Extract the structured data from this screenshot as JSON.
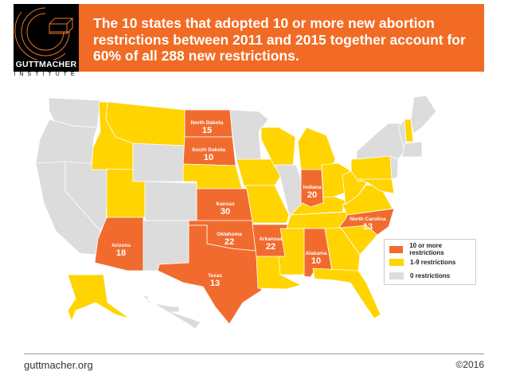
{
  "header": {
    "logo_name": "GUTTMACHER",
    "logo_sub": "INSTITUTE",
    "headline": "The 10 states that adopted 10 or more new abortion restrictions between 2011 and 2015 together account for 60% of all 288 new restrictions."
  },
  "colors": {
    "ten_or_more": "#f26b2e",
    "one_to_nine": "#ffd400",
    "zero": "#dcdcdc",
    "banner": "#f26b24"
  },
  "legend": [
    {
      "key": "ten_or_more",
      "label": "10 or more restrictions"
    },
    {
      "key": "one_to_nine",
      "label": "1-9 restrictions"
    },
    {
      "key": "zero",
      "label": "0 restrictions"
    }
  ],
  "states": {
    "WA": {
      "cat": "zero"
    },
    "OR": {
      "cat": "zero"
    },
    "CA": {
      "cat": "zero"
    },
    "NV": {
      "cat": "zero"
    },
    "ID": {
      "cat": "one_to_nine"
    },
    "MT": {
      "cat": "one_to_nine"
    },
    "WY": {
      "cat": "zero"
    },
    "UT": {
      "cat": "one_to_nine"
    },
    "AZ": {
      "cat": "ten_or_more",
      "name": "Arizona",
      "value": "18"
    },
    "CO": {
      "cat": "zero"
    },
    "NM": {
      "cat": "zero"
    },
    "ND": {
      "cat": "ten_or_more",
      "name": "North Dakota",
      "value": "15"
    },
    "SD": {
      "cat": "ten_or_more",
      "name": "South Dakota",
      "value": "10"
    },
    "NE": {
      "cat": "one_to_nine"
    },
    "KS": {
      "cat": "ten_or_more",
      "name": "Kansas",
      "value": "30"
    },
    "OK": {
      "cat": "ten_or_more",
      "name": "Oklahoma",
      "value": "22"
    },
    "TX": {
      "cat": "ten_or_more",
      "name": "Texas",
      "value": "13"
    },
    "MN": {
      "cat": "zero"
    },
    "IA": {
      "cat": "one_to_nine"
    },
    "MO": {
      "cat": "one_to_nine"
    },
    "AR": {
      "cat": "ten_or_more",
      "name": "Arkansas",
      "value": "22"
    },
    "LA": {
      "cat": "one_to_nine"
    },
    "WI": {
      "cat": "one_to_nine"
    },
    "IL": {
      "cat": "zero"
    },
    "MI": {
      "cat": "one_to_nine"
    },
    "IN": {
      "cat": "ten_or_more",
      "name": "Indiana",
      "value": "20"
    },
    "OH": {
      "cat": "one_to_nine"
    },
    "KY": {
      "cat": "one_to_nine"
    },
    "TN": {
      "cat": "one_to_nine"
    },
    "MS": {
      "cat": "one_to_nine"
    },
    "AL": {
      "cat": "ten_or_more",
      "name": "Alabama",
      "value": "10"
    },
    "GA": {
      "cat": "one_to_nine"
    },
    "FL": {
      "cat": "one_to_nine"
    },
    "SC": {
      "cat": "one_to_nine"
    },
    "NC": {
      "cat": "ten_or_more",
      "name": "North Carolina",
      "value": "13"
    },
    "VA": {
      "cat": "one_to_nine"
    },
    "WV": {
      "cat": "one_to_nine"
    },
    "PA": {
      "cat": "one_to_nine"
    },
    "NY": {
      "cat": "zero"
    },
    "NJ": {
      "cat": "zero"
    },
    "MD": {
      "cat": "one_to_nine"
    },
    "VT": {
      "cat": "zero"
    },
    "NH": {
      "cat": "one_to_nine"
    },
    "ME": {
      "cat": "zero"
    },
    "MA": {
      "cat": "zero"
    },
    "AK": {
      "cat": "one_to_nine"
    },
    "HI": {
      "cat": "zero"
    }
  },
  "footer": {
    "url": "guttmacher.org",
    "copyright": "©2016"
  }
}
